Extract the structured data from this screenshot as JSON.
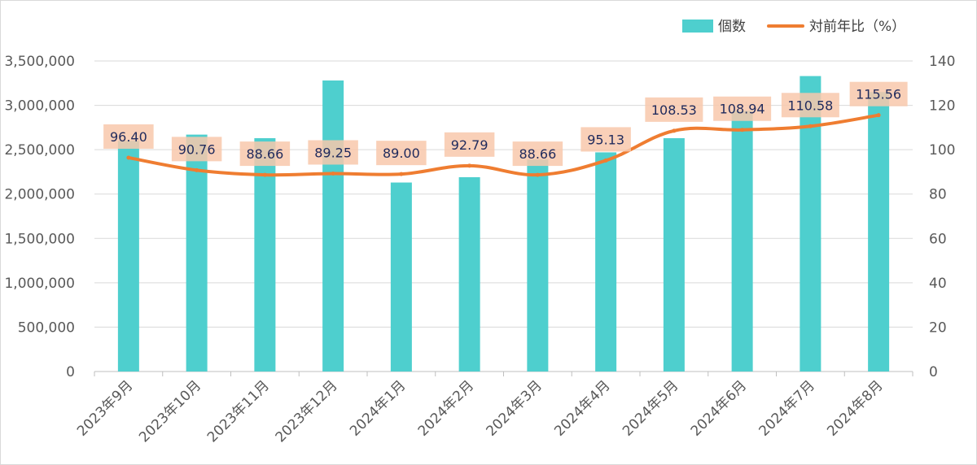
{
  "chart_data": {
    "type": "bar",
    "categories": [
      "2023年9月",
      "2023年10月",
      "2023年11月",
      "2023年12月",
      "2024年1月",
      "2024年2月",
      "2024年3月",
      "2024年4月",
      "2024年5月",
      "2024年6月",
      "2024年7月",
      "2024年8月"
    ],
    "series": [
      {
        "name": "個数",
        "type": "bar",
        "axis": "left",
        "values": [
          2600000,
          2670000,
          2630000,
          3280000,
          2130000,
          2190000,
          2390000,
          2470000,
          2630000,
          2940000,
          3330000,
          3150000
        ]
      },
      {
        "name": "対前年比（%）",
        "type": "line",
        "axis": "right",
        "values": [
          96.4,
          90.76,
          88.66,
          89.25,
          89.0,
          92.79,
          88.66,
          95.13,
          108.53,
          108.94,
          110.58,
          115.56
        ],
        "labels": [
          "96.40",
          "90.76",
          "88.66",
          "89.25",
          "89.00",
          "92.79",
          "88.66",
          "95.13",
          "108.53",
          "108.94",
          "110.58",
          "115.56"
        ]
      }
    ],
    "y_left": {
      "ylim": [
        0,
        3500000
      ],
      "ticks": [
        0,
        500000,
        1000000,
        1500000,
        2000000,
        2500000,
        3000000,
        3500000
      ],
      "tick_labels": [
        "0",
        "500,000",
        "1,000,000",
        "1,500,000",
        "2,000,000",
        "2,500,000",
        "3,000,000",
        "3,500,000"
      ]
    },
    "y_right": {
      "ylim": [
        0,
        140
      ],
      "ticks": [
        0,
        20,
        40,
        60,
        80,
        100,
        120,
        140
      ],
      "tick_labels": [
        "0",
        "20",
        "40",
        "60",
        "80",
        "100",
        "120",
        "140"
      ]
    },
    "grid": true,
    "legend": {
      "placement": "top-right",
      "entries": [
        "個数",
        "対前年比（%）"
      ]
    },
    "colors": {
      "bar": "#4ecfce",
      "line": "#ef7d31",
      "label_bg": "#f8c8ab",
      "label_text": "#1f2a5c",
      "grid": "#d9d9d9",
      "axis_text": "#595959"
    }
  }
}
